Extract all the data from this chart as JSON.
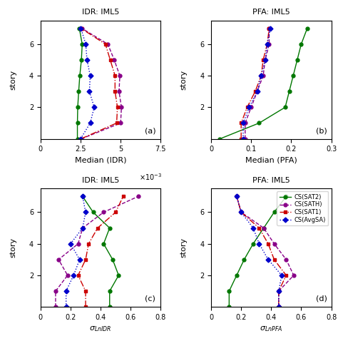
{
  "stories": [
    0,
    1,
    2,
    3,
    4,
    5,
    6,
    7
  ],
  "idr_median": {
    "CS_SAT2": [
      0.0023,
      0.0023,
      0.00232,
      0.00238,
      0.00245,
      0.00255,
      0.0026,
      0.00242
    ],
    "CS_SATH": [
      0.00255,
      0.005,
      0.00505,
      0.0049,
      0.00495,
      0.0046,
      0.0042,
      0.00258
    ],
    "CS_SAT1": [
      0.00252,
      0.00475,
      0.0048,
      0.00465,
      0.00465,
      0.00435,
      0.00405,
      0.00253
    ],
    "CS_AvgSA": [
      0.0025,
      0.0031,
      0.00335,
      0.00305,
      0.0031,
      0.0029,
      0.00282,
      0.00252
    ]
  },
  "pfa_median": {
    "CS_SAT2": [
      0.022,
      0.12,
      0.185,
      0.195,
      0.205,
      0.215,
      0.225,
      0.24
    ],
    "CS_SATH": [
      0.085,
      0.085,
      0.1,
      0.115,
      0.13,
      0.135,
      0.145,
      0.145
    ],
    "CS_SAT1": [
      0.075,
      0.075,
      0.09,
      0.11,
      0.125,
      0.13,
      0.14,
      0.145
    ],
    "CS_AvgSA": [
      0.08,
      0.08,
      0.095,
      0.115,
      0.125,
      0.135,
      0.14,
      0.148
    ]
  },
  "idr_sigma": {
    "CS_SAT2": [
      0.46,
      0.46,
      0.52,
      0.48,
      0.42,
      0.46,
      0.35,
      0.28
    ],
    "CS_SATH": [
      0.1,
      0.1,
      0.18,
      0.12,
      0.25,
      0.28,
      0.42,
      0.65
    ],
    "CS_SAT1": [
      0.3,
      0.3,
      0.25,
      0.3,
      0.32,
      0.38,
      0.5,
      0.55
    ],
    "CS_AvgSA": [
      0.17,
      0.17,
      0.22,
      0.26,
      0.2,
      0.28,
      0.3,
      0.28
    ]
  },
  "pfa_sigma": {
    "CS_SAT2": [
      0.12,
      0.12,
      0.17,
      0.22,
      0.28,
      0.35,
      0.42,
      0.5
    ],
    "CS_SATH": [
      0.45,
      0.45,
      0.55,
      0.5,
      0.42,
      0.35,
      0.2,
      0.17
    ],
    "CS_SAT1": [
      0.45,
      0.45,
      0.5,
      0.42,
      0.38,
      0.32,
      0.2,
      0.17
    ],
    "CS_AvgSA": [
      0.45,
      0.45,
      0.47,
      0.38,
      0.32,
      0.28,
      0.2,
      0.17
    ]
  },
  "line_styles": {
    "CS_SAT2": {
      "color": "#007700",
      "linestyle": "-",
      "marker": "o",
      "markersize": 3.5
    },
    "CS_SATH": {
      "color": "#880088",
      "linestyle": "--",
      "marker": "o",
      "markersize": 3.5
    },
    "CS_SAT1": {
      "color": "#cc0000",
      "linestyle": "-.",
      "marker": "s",
      "markersize": 3.5
    },
    "CS_AvgSA": {
      "color": "#0000cc",
      "linestyle": ":",
      "marker": "D",
      "markersize": 3.5
    }
  },
  "legend_labels": {
    "CS_SAT2": "CS(SAT2)",
    "CS_SATH": "CS(SATH)",
    "CS_SAT1": "CS(SAT1)",
    "CS_AvgSA": "CS(AvgSA)"
  },
  "titles": {
    "a": "IDR: IML5",
    "b": "PFA: IML5",
    "c": "IDR: IML5",
    "d": "PFA: IML5"
  },
  "xlabels": {
    "a": "Median (IDR)",
    "b": "Median (PFA)",
    "c": "$\\sigma_{LnIDR}$",
    "d": "$\\sigma_{LnPFA}$"
  },
  "xlims": {
    "a": [
      0,
      0.0075
    ],
    "b": [
      0,
      0.3
    ],
    "c": [
      0,
      0.8
    ],
    "d": [
      0,
      0.8
    ]
  },
  "xtick_labels": {
    "a": [
      "0",
      "2.5",
      "5",
      "7.5"
    ],
    "b": [
      "0",
      "0.1",
      "0.2",
      "0.3"
    ],
    "c": [
      "0",
      "0.2",
      "0.4",
      "0.6",
      "0.8"
    ],
    "d": [
      "0",
      "0.2",
      "0.4",
      "0.6",
      "0.8"
    ]
  },
  "xticks": {
    "a": [
      0,
      0.0025,
      0.005,
      0.0075
    ],
    "b": [
      0,
      0.1,
      0.2,
      0.3
    ],
    "c": [
      0,
      0.2,
      0.4,
      0.6,
      0.8
    ],
    "d": [
      0,
      0.2,
      0.4,
      0.6,
      0.8
    ]
  },
  "ylim": [
    0,
    7.5
  ],
  "yticks": [
    2,
    4,
    6
  ],
  "ylabel": "story",
  "panel_labels": [
    "(a)",
    "(b)",
    "(c)",
    "(d)"
  ]
}
